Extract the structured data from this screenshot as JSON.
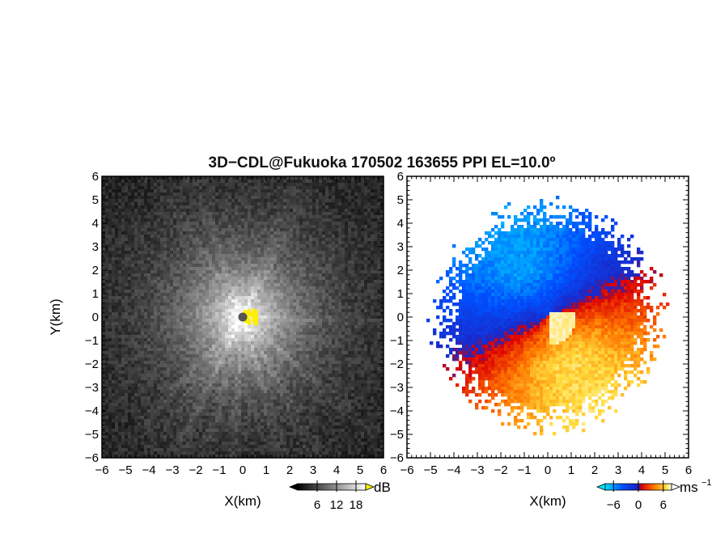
{
  "title": "3D−CDL@Fukuoka 170502 163655 PPI EL=10.0º",
  "chart_data": [
    {
      "type": "heatmap",
      "panel": "left",
      "quantity": "reflectivity (PPI)",
      "xlabel": "X(km)",
      "ylabel": "Y(km)",
      "xlim": [
        -6,
        6
      ],
      "ylim": [
        -6,
        6
      ],
      "xticks": [
        "−6",
        "−5",
        "−4",
        "−3",
        "−2",
        "−1",
        "0",
        "1",
        "2",
        "3",
        "4",
        "5",
        "6"
      ],
      "yticks": [
        "6",
        "5",
        "4",
        "3",
        "2",
        "1",
        "0",
        "−1",
        "−2",
        "−3",
        "−4",
        "−5",
        "−6"
      ],
      "colorbar": {
        "unit": "dB",
        "ticks": [
          "6",
          "12",
          "18"
        ],
        "range": [
          0,
          21
        ],
        "scheme": "black-to-white, yellow above"
      },
      "features": {
        "center_gray_dot": [
          0,
          0
        ],
        "yellow_patch_near": [
          0.3,
          0
        ]
      }
    },
    {
      "type": "heatmap",
      "panel": "right",
      "quantity": "radial velocity (PPI)",
      "xlabel": "X(km)",
      "xlim": [
        -6,
        6
      ],
      "ylim": [
        -6,
        6
      ],
      "xticks": [
        "−6",
        "−5",
        "−4",
        "−3",
        "−2",
        "−1",
        "0",
        "1",
        "2",
        "3",
        "4",
        "5",
        "6"
      ],
      "yticks": [
        "6",
        "5",
        "4",
        "3",
        "2",
        "1",
        "0",
        "−1",
        "−2",
        "−3",
        "−4",
        "−5",
        "−6"
      ],
      "colorbar": {
        "unit": "ms",
        "unit_exponent": "−1",
        "ticks": [
          "−6",
          "0",
          "6"
        ],
        "range": [
          -8,
          8
        ],
        "scheme": "cyan-blue (negative) to red-orange-yellow-white (positive)"
      },
      "data_radius_km": 4.6
    }
  ]
}
